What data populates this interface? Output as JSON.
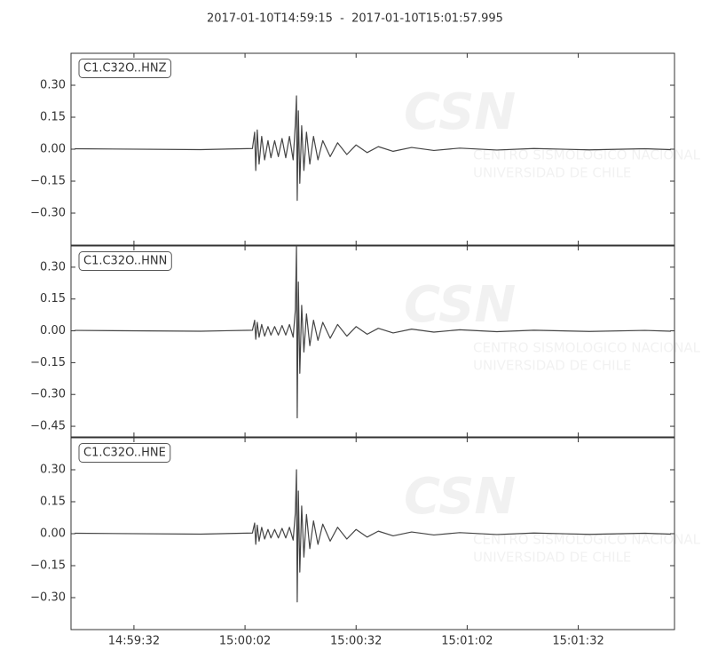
{
  "title": "2017-01-10T14:59:15  -  2017-01-10T15:01:57.995",
  "xlim": [
    53955,
    54117.995
  ],
  "xticks": [
    {
      "value": 53972,
      "label": "14:59:32"
    },
    {
      "value": 54002,
      "label": "15:00:02"
    },
    {
      "value": 54032,
      "label": "15:00:32"
    },
    {
      "value": 54062,
      "label": "15:01:02"
    },
    {
      "value": 54092,
      "label": "15:01:32"
    }
  ],
  "watermark": {
    "logo": "CSN",
    "lines": [
      "CENTRO SISMOLOGICO NACIONAL",
      "UNIVERSIDAD DE CHILE"
    ]
  },
  "chart_data": [
    {
      "type": "line",
      "label": "C1.C32O..HNZ",
      "color": "#444444",
      "ylim": [
        -0.45,
        0.45
      ],
      "yticks": [
        {
          "value": -0.3,
          "label": "−0.30"
        },
        {
          "value": -0.15,
          "label": "−0.15"
        },
        {
          "value": 0,
          "label": "0.00"
        },
        {
          "value": 0.15,
          "label": "0.15"
        },
        {
          "value": 0.3,
          "label": "0.30"
        }
      ],
      "x": [
        53956,
        53990,
        54004,
        54004.6,
        54004.9,
        54005.3,
        54005.8,
        54006.5,
        54007.3,
        54008.2,
        54009,
        54010,
        54011,
        54012,
        54013,
        54014,
        54015,
        54015.6,
        54015.9,
        54016.1,
        54016.4,
        54016.8,
        54017.3,
        54017.9,
        54018.6,
        54019.5,
        54020.5,
        54021.7,
        54023,
        54025,
        54027,
        54029.5,
        54032,
        54035,
        54038,
        54042,
        54047,
        54053,
        54060,
        54070,
        54080,
        54095,
        54110,
        54117
      ],
      "values": [
        0.002,
        -0.002,
        0.003,
        0.08,
        -0.1,
        0.09,
        -0.07,
        0.06,
        -0.05,
        0.04,
        -0.04,
        0.04,
        -0.035,
        0.05,
        -0.04,
        0.06,
        -0.05,
        0.12,
        0.25,
        -0.24,
        0.18,
        -0.16,
        0.11,
        -0.1,
        0.08,
        -0.07,
        0.06,
        -0.05,
        0.04,
        -0.035,
        0.03,
        -0.025,
        0.02,
        -0.016,
        0.012,
        -0.01,
        0.008,
        -0.006,
        0.005,
        -0.004,
        0.003,
        -0.003,
        0.002,
        -0.002
      ]
    },
    {
      "type": "line",
      "label": "C1.C32O..HNN",
      "color": "#444444",
      "ylim": [
        -0.5,
        0.4
      ],
      "yticks": [
        {
          "value": -0.45,
          "label": "−0.45"
        },
        {
          "value": -0.3,
          "label": "−0.30"
        },
        {
          "value": -0.15,
          "label": "−0.15"
        },
        {
          "value": 0,
          "label": "0.00"
        },
        {
          "value": 0.15,
          "label": "0.15"
        },
        {
          "value": 0.3,
          "label": "0.30"
        }
      ],
      "x": [
        53956,
        53990,
        54004,
        54004.6,
        54004.9,
        54005.3,
        54005.8,
        54006.5,
        54007.3,
        54008.2,
        54009,
        54010,
        54011,
        54012,
        54013,
        54014,
        54015,
        54015.6,
        54015.9,
        54016.1,
        54016.4,
        54016.8,
        54017.3,
        54017.9,
        54018.6,
        54019.5,
        54020.5,
        54021.7,
        54023,
        54025,
        54027,
        54029.5,
        54032,
        54035,
        54038,
        54042,
        54047,
        54053,
        54060,
        54070,
        54080,
        54095,
        54110,
        54117
      ],
      "values": [
        0.002,
        -0.002,
        0.003,
        0.05,
        -0.04,
        0.04,
        -0.03,
        0.03,
        -0.025,
        0.02,
        -0.02,
        0.02,
        -0.02,
        0.025,
        -0.02,
        0.03,
        -0.03,
        0.1,
        0.4,
        -0.41,
        0.23,
        -0.2,
        0.12,
        -0.1,
        0.08,
        -0.07,
        0.05,
        -0.045,
        0.04,
        -0.035,
        0.03,
        -0.025,
        0.02,
        -0.016,
        0.012,
        -0.01,
        0.008,
        -0.006,
        0.005,
        -0.004,
        0.003,
        -0.003,
        0.002,
        -0.002
      ]
    },
    {
      "type": "line",
      "label": "C1.C32O..HNE",
      "color": "#444444",
      "ylim": [
        -0.45,
        0.45
      ],
      "yticks": [
        {
          "value": -0.3,
          "label": "−0.30"
        },
        {
          "value": -0.15,
          "label": "−0.15"
        },
        {
          "value": 0,
          "label": "0.00"
        },
        {
          "value": 0.15,
          "label": "0.15"
        },
        {
          "value": 0.3,
          "label": "0.30"
        }
      ],
      "x": [
        53956,
        53990,
        54004,
        54004.6,
        54004.9,
        54005.3,
        54005.8,
        54006.5,
        54007.3,
        54008.2,
        54009,
        54010,
        54011,
        54012,
        54013,
        54014,
        54015,
        54015.6,
        54015.9,
        54016.1,
        54016.4,
        54016.8,
        54017.3,
        54017.9,
        54018.6,
        54019.5,
        54020.5,
        54021.7,
        54023,
        54025,
        54027,
        54029.5,
        54032,
        54035,
        54038,
        54042,
        54047,
        54053,
        54060,
        54070,
        54080,
        54095,
        54110,
        54117
      ],
      "values": [
        0.002,
        -0.002,
        0.003,
        0.05,
        -0.05,
        0.04,
        -0.035,
        0.03,
        -0.025,
        0.02,
        -0.02,
        0.02,
        -0.02,
        0.025,
        -0.02,
        0.03,
        -0.03,
        0.1,
        0.3,
        -0.32,
        0.2,
        -0.18,
        0.13,
        -0.11,
        0.09,
        -0.07,
        0.06,
        -0.05,
        0.045,
        -0.035,
        0.03,
        -0.025,
        0.02,
        -0.016,
        0.012,
        -0.01,
        0.008,
        -0.006,
        0.005,
        -0.004,
        0.003,
        -0.003,
        0.002,
        -0.002
      ]
    }
  ]
}
